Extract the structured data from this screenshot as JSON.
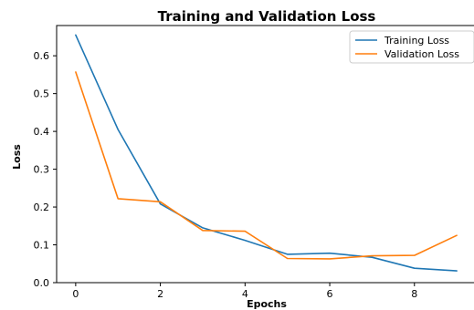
{
  "chart_data": {
    "type": "line",
    "title": "Training and Validation Loss",
    "xlabel": "Epochs",
    "ylabel": "Loss",
    "x": [
      0,
      1,
      2,
      3,
      4,
      5,
      6,
      7,
      8,
      9
    ],
    "xlim": [
      -0.45,
      9.45
    ],
    "ylim": [
      0.0,
      0.68
    ],
    "xticks": [
      0,
      2,
      4,
      6,
      8
    ],
    "yticks": [
      0.0,
      0.1,
      0.2,
      0.3,
      0.4,
      0.5,
      0.6
    ],
    "xtick_labels": [
      "0",
      "2",
      "4",
      "6",
      "8"
    ],
    "ytick_labels": [
      "0.0",
      "0.1",
      "0.2",
      "0.3",
      "0.4",
      "0.5",
      "0.6"
    ],
    "grid": false,
    "legend_position": "top-right",
    "series": [
      {
        "name": "Training Loss",
        "color": "#1f77b4",
        "values": [
          0.655,
          0.405,
          0.208,
          0.145,
          0.112,
          0.075,
          0.078,
          0.067,
          0.038,
          0.031
        ]
      },
      {
        "name": "Validation Loss",
        "color": "#ff7f0e",
        "values": [
          0.557,
          0.222,
          0.214,
          0.138,
          0.136,
          0.064,
          0.063,
          0.071,
          0.072,
          0.125
        ]
      }
    ]
  }
}
